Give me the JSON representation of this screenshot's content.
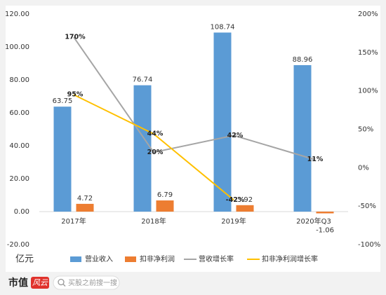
{
  "chart_data": {
    "type": "combo",
    "categories": [
      "2017年",
      "2018年",
      "2019年",
      "2020年Q3"
    ],
    "series": [
      {
        "name": "营业收入",
        "type": "bar",
        "color": "#5b9bd5",
        "values": [
          63.75,
          76.74,
          108.74,
          88.96
        ]
      },
      {
        "name": "扣非净利润",
        "type": "bar",
        "color": "#ed7d31",
        "values": [
          4.72,
          6.79,
          3.92,
          -1.06
        ]
      },
      {
        "name": "营收增长率",
        "type": "line",
        "axis": "y2",
        "color": "#a5a5a5",
        "values": [
          170,
          20,
          42,
          11
        ],
        "value_labels": [
          "170%",
          "20%",
          "42%",
          "11%"
        ]
      },
      {
        "name": "扣非净利润增长率",
        "type": "line",
        "axis": "y2",
        "color": "#ffc000",
        "values": [
          95,
          44,
          -42,
          null
        ],
        "value_labels": [
          "95%",
          "44%",
          "-42%",
          null
        ]
      }
    ],
    "ylim": [
      -20,
      120
    ],
    "yticks": [
      {
        "value": -20,
        "label": "-20.00"
      },
      {
        "value": 0,
        "label": "0.00"
      },
      {
        "value": 20,
        "label": "20.00"
      },
      {
        "value": 40,
        "label": "40.00"
      },
      {
        "value": 60,
        "label": "60.00"
      },
      {
        "value": 80,
        "label": "80.00"
      },
      {
        "value": 100,
        "label": "100.00"
      },
      {
        "value": 120,
        "label": "120.00"
      }
    ],
    "y2lim": [
      -100,
      200
    ],
    "y2ticks": [
      {
        "value": -100,
        "label": "-100%"
      },
      {
        "value": -50,
        "label": "-50%"
      },
      {
        "value": 0,
        "label": "0%"
      },
      {
        "value": 50,
        "label": "50%"
      },
      {
        "value": 100,
        "label": "100%"
      },
      {
        "value": 150,
        "label": "150%"
      },
      {
        "value": 200,
        "label": "200%"
      }
    ],
    "y_unit": "亿元",
    "legend": "bottom"
  },
  "footer": {
    "brand": "市值",
    "logo": "风云",
    "search": "买股之前搜一搜"
  }
}
